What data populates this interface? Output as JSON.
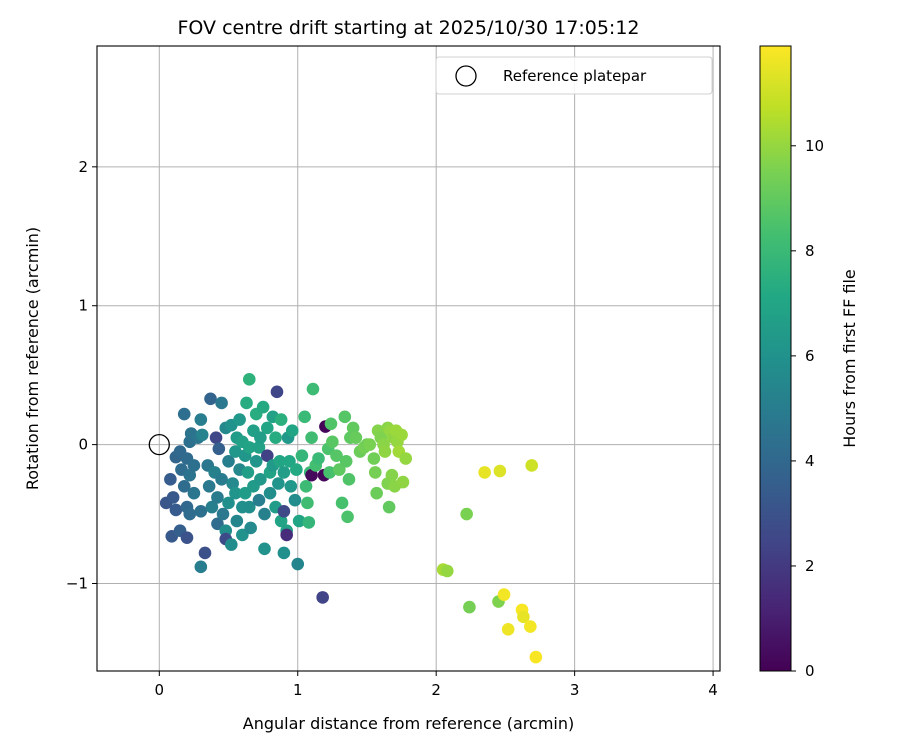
{
  "chart_data": {
    "type": "scatter",
    "title": "FOV centre drift starting at 2025/10/30 17:05:12",
    "xlabel": "Angular distance from reference (arcmin)",
    "ylabel": "Rotation from reference (arcmin)",
    "xlim": [
      -0.45,
      4.05
    ],
    "ylim": [
      -1.63,
      2.87
    ],
    "xticks": [
      0,
      1,
      2,
      3,
      4
    ],
    "yticks": [
      -1,
      0,
      1,
      2
    ],
    "xtick_labels": [
      "0",
      "1",
      "2",
      "3",
      "4"
    ],
    "ytick_labels": [
      "−1",
      "0",
      "1",
      "2"
    ],
    "grid": true,
    "legend": {
      "location": "top-right",
      "entries": [
        {
          "label": "Reference platepar",
          "marker": "open-circle",
          "x": 0,
          "y": 0
        }
      ]
    },
    "colorbar": {
      "label": "Hours from first FF file",
      "colormap": "viridis",
      "range": [
        0,
        11.9
      ],
      "ticks": [
        0,
        2,
        4,
        6,
        8,
        10
      ],
      "tick_labels": [
        "0",
        "2",
        "4",
        "6",
        "8",
        "10"
      ]
    },
    "series": [
      {
        "name": "FOV centre drift",
        "color_by": "hours",
        "points": [
          {
            "x": 0.05,
            "y": -0.42,
            "h": 3.2
          },
          {
            "x": 0.08,
            "y": -0.25,
            "h": 3.5
          },
          {
            "x": 0.1,
            "y": -0.38,
            "h": 3.3
          },
          {
            "x": 0.09,
            "y": -0.66,
            "h": 3.3
          },
          {
            "x": 0.12,
            "y": -0.47,
            "h": 3.4
          },
          {
            "x": 0.15,
            "y": -0.62,
            "h": 3.6
          },
          {
            "x": 0.12,
            "y": -0.09,
            "h": 3.9
          },
          {
            "x": 0.15,
            "y": -0.05,
            "h": 4.0
          },
          {
            "x": 0.16,
            "y": -0.18,
            "h": 4.2
          },
          {
            "x": 0.18,
            "y": 0.22,
            "h": 4.3
          },
          {
            "x": 0.18,
            "y": -0.3,
            "h": 4.2
          },
          {
            "x": 0.2,
            "y": -0.1,
            "h": 4.1
          },
          {
            "x": 0.2,
            "y": -0.45,
            "h": 4.0
          },
          {
            "x": 0.2,
            "y": -0.67,
            "h": 3.0
          },
          {
            "x": 0.22,
            "y": 0.02,
            "h": 4.4
          },
          {
            "x": 0.22,
            "y": -0.5,
            "h": 4.2
          },
          {
            "x": 0.22,
            "y": -0.22,
            "h": 4.5
          },
          {
            "x": 0.23,
            "y": 0.08,
            "h": 4.5
          },
          {
            "x": 0.25,
            "y": -0.15,
            "h": 4.4
          },
          {
            "x": 0.25,
            "y": -0.35,
            "h": 4.6
          },
          {
            "x": 0.28,
            "y": 0.05,
            "h": 4.6
          },
          {
            "x": 0.3,
            "y": -0.48,
            "h": 4.4
          },
          {
            "x": 0.3,
            "y": -0.88,
            "h": 5.0
          },
          {
            "x": 0.31,
            "y": 0.07,
            "h": 5.3
          },
          {
            "x": 0.3,
            "y": 0.18,
            "h": 5.0
          },
          {
            "x": 0.33,
            "y": -0.78,
            "h": 2.9
          },
          {
            "x": 0.35,
            "y": -0.15,
            "h": 4.7
          },
          {
            "x": 0.36,
            "y": -0.3,
            "h": 4.8
          },
          {
            "x": 0.37,
            "y": 0.33,
            "h": 3.8
          },
          {
            "x": 0.38,
            "y": -0.45,
            "h": 5.1
          },
          {
            "x": 0.4,
            "y": -0.2,
            "h": 5.2
          },
          {
            "x": 0.41,
            "y": 0.05,
            "h": 2.5
          },
          {
            "x": 0.42,
            "y": -0.38,
            "h": 4.9
          },
          {
            "x": 0.42,
            "y": -0.57,
            "h": 4.2
          },
          {
            "x": 0.43,
            "y": -0.03,
            "h": 3.6
          },
          {
            "x": 0.45,
            "y": 0.3,
            "h": 4.8
          },
          {
            "x": 0.45,
            "y": -0.25,
            "h": 4.9
          },
          {
            "x": 0.46,
            "y": -0.5,
            "h": 4.8
          },
          {
            "x": 0.48,
            "y": 0.12,
            "h": 5.5
          },
          {
            "x": 0.48,
            "y": -0.62,
            "h": 5.8
          },
          {
            "x": 0.48,
            "y": -0.68,
            "h": 2.7
          },
          {
            "x": 0.5,
            "y": -0.12,
            "h": 5.1
          },
          {
            "x": 0.5,
            "y": -0.42,
            "h": 5.9
          },
          {
            "x": 0.52,
            "y": -0.72,
            "h": 5.7
          },
          {
            "x": 0.52,
            "y": 0.14,
            "h": 6.0
          },
          {
            "x": 0.53,
            "y": -0.28,
            "h": 5.6
          },
          {
            "x": 0.55,
            "y": -0.05,
            "h": 6.2
          },
          {
            "x": 0.55,
            "y": -0.35,
            "h": 6.1
          },
          {
            "x": 0.56,
            "y": 0.05,
            "h": 6.5
          },
          {
            "x": 0.56,
            "y": -0.55,
            "h": 5.4
          },
          {
            "x": 0.58,
            "y": 0.18,
            "h": 6.3
          },
          {
            "x": 0.58,
            "y": -0.18,
            "h": 5.5
          },
          {
            "x": 0.6,
            "y": -0.45,
            "h": 5.9
          },
          {
            "x": 0.6,
            "y": 0.02,
            "h": 6.8
          },
          {
            "x": 0.6,
            "y": -0.65,
            "h": 6.0
          },
          {
            "x": 0.62,
            "y": -0.08,
            "h": 6.2
          },
          {
            "x": 0.62,
            "y": -0.35,
            "h": 6.5
          },
          {
            "x": 0.63,
            "y": 0.3,
            "h": 7.3
          },
          {
            "x": 0.64,
            "y": -0.2,
            "h": 6.6
          },
          {
            "x": 0.65,
            "y": 0.47,
            "h": 7.6
          },
          {
            "x": 0.65,
            "y": -0.02,
            "h": 6.9
          },
          {
            "x": 0.65,
            "y": -0.45,
            "h": 5.8
          },
          {
            "x": 0.66,
            "y": -0.6,
            "h": 5.6
          },
          {
            "x": 0.68,
            "y": -0.3,
            "h": 6.4
          },
          {
            "x": 0.68,
            "y": 0.1,
            "h": 6.7
          },
          {
            "x": 0.7,
            "y": -0.12,
            "h": 6.1
          },
          {
            "x": 0.7,
            "y": 0.22,
            "h": 7.4
          },
          {
            "x": 0.72,
            "y": -0.02,
            "h": 6.8
          },
          {
            "x": 0.72,
            "y": -0.4,
            "h": 5.0
          },
          {
            "x": 0.73,
            "y": 0.05,
            "h": 6.6
          },
          {
            "x": 0.73,
            "y": -0.25,
            "h": 6.3
          },
          {
            "x": 0.75,
            "y": 0.27,
            "h": 7.2
          },
          {
            "x": 0.76,
            "y": -0.5,
            "h": 5.2
          },
          {
            "x": 0.76,
            "y": -0.75,
            "h": 6.0
          },
          {
            "x": 0.78,
            "y": -0.08,
            "h": 2.3
          },
          {
            "x": 0.78,
            "y": 0.12,
            "h": 7.0
          },
          {
            "x": 0.8,
            "y": -0.35,
            "h": 5.8
          },
          {
            "x": 0.8,
            "y": -0.2,
            "h": 6.9
          },
          {
            "x": 0.82,
            "y": 0.2,
            "h": 6.8
          },
          {
            "x": 0.82,
            "y": -0.15,
            "h": 6.4
          },
          {
            "x": 0.84,
            "y": -0.45,
            "h": 6.5
          },
          {
            "x": 0.84,
            "y": 0.05,
            "h": 7.3
          },
          {
            "x": 0.85,
            "y": 0.38,
            "h": 2.5
          },
          {
            "x": 0.86,
            "y": -0.28,
            "h": 6.1
          },
          {
            "x": 0.87,
            "y": -0.12,
            "h": 7.0
          },
          {
            "x": 0.88,
            "y": 0.18,
            "h": 7.5
          },
          {
            "x": 0.88,
            "y": -0.55,
            "h": 6.9
          },
          {
            "x": 0.9,
            "y": -0.48,
            "h": 2.6
          },
          {
            "x": 0.9,
            "y": -0.2,
            "h": 6.6
          },
          {
            "x": 0.9,
            "y": -0.78,
            "h": 5.9
          },
          {
            "x": 0.92,
            "y": -0.62,
            "h": 6.8
          },
          {
            "x": 0.92,
            "y": -0.65,
            "h": 1.5
          },
          {
            "x": 0.93,
            "y": 0.05,
            "h": 6.3
          },
          {
            "x": 0.94,
            "y": -0.12,
            "h": 7.1
          },
          {
            "x": 0.95,
            "y": -0.3,
            "h": 6.3
          },
          {
            "x": 0.96,
            "y": 0.1,
            "h": 7.0
          },
          {
            "x": 0.98,
            "y": -0.4,
            "h": 5.7
          },
          {
            "x": 0.99,
            "y": -0.18,
            "h": 7.2
          },
          {
            "x": 1.0,
            "y": -0.86,
            "h": 5.4
          },
          {
            "x": 1.01,
            "y": -0.55,
            "h": 7.0
          },
          {
            "x": 1.03,
            "y": -0.08,
            "h": 7.8
          },
          {
            "x": 1.05,
            "y": 0.2,
            "h": 8.0
          },
          {
            "x": 1.06,
            "y": -0.3,
            "h": 8.1
          },
          {
            "x": 1.07,
            "y": -0.42,
            "h": 8.2
          },
          {
            "x": 1.08,
            "y": -0.56,
            "h": 7.8
          },
          {
            "x": 1.09,
            "y": -0.2,
            "h": 8.0
          },
          {
            "x": 1.1,
            "y": 0.05,
            "h": 8.2
          },
          {
            "x": 1.1,
            "y": -0.22,
            "h": 0.3
          },
          {
            "x": 1.11,
            "y": 0.4,
            "h": 8.1
          },
          {
            "x": 1.13,
            "y": -0.15,
            "h": 8.3
          },
          {
            "x": 1.15,
            "y": -0.1,
            "h": 8.0
          },
          {
            "x": 1.18,
            "y": -1.1,
            "h": 2.4
          },
          {
            "x": 1.19,
            "y": -0.22,
            "h": 0.2
          },
          {
            "x": 1.2,
            "y": 0.13,
            "h": 0.1
          },
          {
            "x": 1.22,
            "y": -0.03,
            "h": 8.5
          },
          {
            "x": 1.23,
            "y": -0.2,
            "h": 8.4
          },
          {
            "x": 1.24,
            "y": 0.15,
            "h": 8.6
          },
          {
            "x": 1.25,
            "y": 0.02,
            "h": 8.8
          },
          {
            "x": 1.28,
            "y": -0.08,
            "h": 8.7
          },
          {
            "x": 1.3,
            "y": -0.18,
            "h": 8.9
          },
          {
            "x": 1.32,
            "y": -0.42,
            "h": 8.4
          },
          {
            "x": 1.34,
            "y": 0.2,
            "h": 8.7
          },
          {
            "x": 1.35,
            "y": -0.12,
            "h": 8.8
          },
          {
            "x": 1.36,
            "y": -0.52,
            "h": 8.5
          },
          {
            "x": 1.37,
            "y": -0.25,
            "h": 8.6
          },
          {
            "x": 1.38,
            "y": 0.05,
            "h": 8.9
          },
          {
            "x": 1.4,
            "y": 0.12,
            "h": 9.0
          },
          {
            "x": 1.42,
            "y": 0.05,
            "h": 9.1
          },
          {
            "x": 1.45,
            "y": -0.05,
            "h": 9.2
          },
          {
            "x": 1.48,
            "y": -0.02,
            "h": 9.4
          },
          {
            "x": 1.5,
            "y": 0.0,
            "h": 9.3
          },
          {
            "x": 1.52,
            "y": 0.0,
            "h": 9.5
          },
          {
            "x": 1.55,
            "y": -0.1,
            "h": 9.3
          },
          {
            "x": 1.56,
            "y": -0.2,
            "h": 9.4
          },
          {
            "x": 1.57,
            "y": -0.35,
            "h": 9.2
          },
          {
            "x": 1.58,
            "y": 0.1,
            "h": 9.7
          },
          {
            "x": 1.6,
            "y": 0.05,
            "h": 9.6
          },
          {
            "x": 1.62,
            "y": 0.0,
            "h": 9.8
          },
          {
            "x": 1.63,
            "y": -0.05,
            "h": 9.9
          },
          {
            "x": 1.65,
            "y": 0.12,
            "h": 9.8
          },
          {
            "x": 1.65,
            "y": -0.28,
            "h": 9.6
          },
          {
            "x": 1.66,
            "y": -0.45,
            "h": 9.0
          },
          {
            "x": 1.67,
            "y": 0.1,
            "h": 10.0
          },
          {
            "x": 1.68,
            "y": -0.22,
            "h": 9.7
          },
          {
            "x": 1.69,
            "y": 0.05,
            "h": 9.9
          },
          {
            "x": 1.7,
            "y": -0.3,
            "h": 9.8
          },
          {
            "x": 1.71,
            "y": 0.1,
            "h": 10.1
          },
          {
            "x": 1.72,
            "y": 0.02,
            "h": 10.0
          },
          {
            "x": 1.73,
            "y": -0.05,
            "h": 10.2
          },
          {
            "x": 1.75,
            "y": 0.07,
            "h": 10.1
          },
          {
            "x": 1.76,
            "y": -0.27,
            "h": 9.9
          },
          {
            "x": 1.78,
            "y": -0.1,
            "h": 10.0
          },
          {
            "x": 2.05,
            "y": -0.9,
            "h": 10.3
          },
          {
            "x": 2.08,
            "y": -0.91,
            "h": 10.0
          },
          {
            "x": 2.22,
            "y": -0.5,
            "h": 9.5
          },
          {
            "x": 2.24,
            "y": -1.17,
            "h": 9.4
          },
          {
            "x": 2.35,
            "y": -0.2,
            "h": 11.5
          },
          {
            "x": 2.45,
            "y": -1.13,
            "h": 9.6
          },
          {
            "x": 2.46,
            "y": -0.19,
            "h": 11.3
          },
          {
            "x": 2.49,
            "y": -1.08,
            "h": 11.7
          },
          {
            "x": 2.52,
            "y": -1.33,
            "h": 11.6
          },
          {
            "x": 2.62,
            "y": -1.19,
            "h": 11.8
          },
          {
            "x": 2.63,
            "y": -1.24,
            "h": 11.5
          },
          {
            "x": 2.68,
            "y": -1.31,
            "h": 11.7
          },
          {
            "x": 2.69,
            "y": -0.15,
            "h": 11.0
          },
          {
            "x": 2.72,
            "y": -1.53,
            "h": 11.8
          }
        ]
      }
    ]
  }
}
